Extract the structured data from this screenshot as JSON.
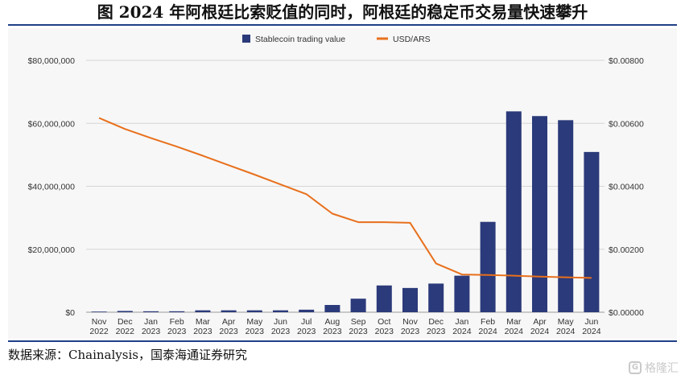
{
  "header": {
    "title": "图 2024 年阿根廷比索贬值的同时，阿根廷的稳定币交易量快速攀升"
  },
  "footer": {
    "source": "数据来源：Chainalysis，国泰海通证券研究",
    "watermark": "格隆汇"
  },
  "chart_data": {
    "type": "bar",
    "categories": [
      [
        "Nov",
        "2022"
      ],
      [
        "Dec",
        "2022"
      ],
      [
        "Jan",
        "2023"
      ],
      [
        "Feb",
        "2023"
      ],
      [
        "Mar",
        "2023"
      ],
      [
        "Apr",
        "2023"
      ],
      [
        "May",
        "2023"
      ],
      [
        "Jun",
        "2023"
      ],
      [
        "Jul",
        "2023"
      ],
      [
        "Aug",
        "2023"
      ],
      [
        "Sep",
        "2023"
      ],
      [
        "Oct",
        "2023"
      ],
      [
        "Nov",
        "2023"
      ],
      [
        "Dec",
        "2023"
      ],
      [
        "Jan",
        "2024"
      ],
      [
        "Feb",
        "2024"
      ],
      [
        "Mar",
        "2024"
      ],
      [
        "Apr",
        "2024"
      ],
      [
        "May",
        "2024"
      ],
      [
        "Jun",
        "2024"
      ]
    ],
    "series": [
      {
        "name": "Stablecoin trading value",
        "type": "bar",
        "axis": "left",
        "color": "#2b3a7a",
        "values": [
          200000,
          400000,
          300000,
          300000,
          600000,
          600000,
          600000,
          600000,
          800000,
          2300000,
          4300000,
          8500000,
          7700000,
          9100000,
          11600000,
          28700000,
          63800000,
          62300000,
          61000000,
          50900000
        ]
      },
      {
        "name": "USD/ARS",
        "type": "line",
        "axis": "right",
        "color": "#e8701c",
        "values": [
          0.00617,
          0.00582,
          0.00553,
          0.00526,
          0.00497,
          0.00467,
          0.00437,
          0.00406,
          0.00375,
          0.00313,
          0.00286,
          0.00286,
          0.00284,
          0.00155,
          0.0012,
          0.00118,
          0.00116,
          0.00113,
          0.00111,
          0.00109
        ]
      }
    ],
    "y_left": {
      "range": [
        0,
        80000000
      ],
      "ticks": [
        "$0",
        "$20,000,000",
        "$40,000,000",
        "$60,000,000",
        "$80,000,000"
      ]
    },
    "y_right": {
      "range": [
        0,
        0.008
      ],
      "ticks": [
        "$0.00000",
        "$0.00200",
        "$0.00400",
        "$0.00600",
        "$0.00800"
      ]
    },
    "grid": true,
    "legend_position": "top-center"
  }
}
